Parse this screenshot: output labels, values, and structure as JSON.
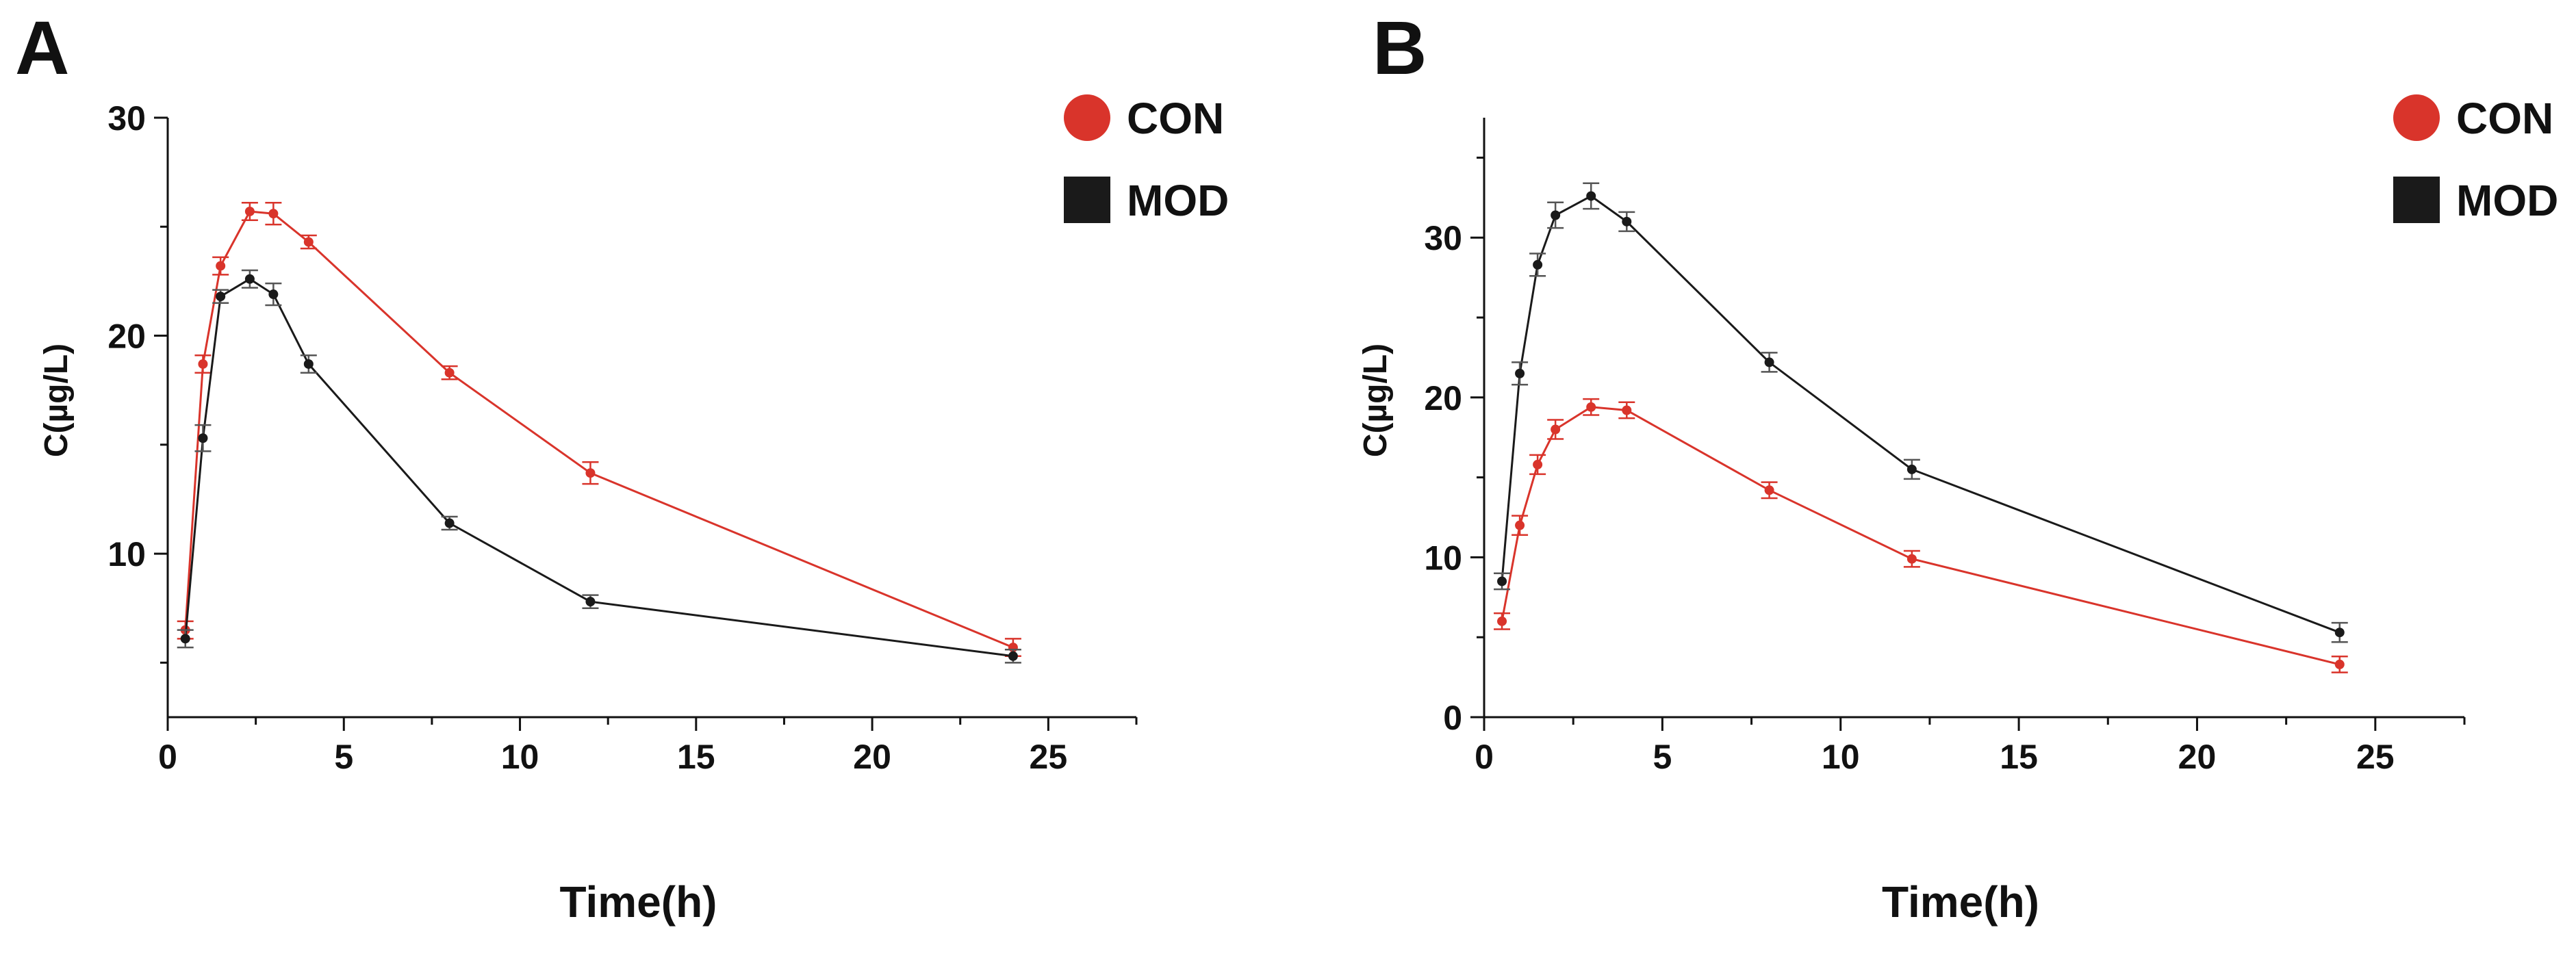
{
  "chart_data": [
    {
      "panel": "A",
      "type": "line",
      "title": "",
      "xlabel": "Time(h)",
      "ylabel": "C(µg/L)",
      "xlim": [
        0,
        27.5
      ],
      "ylim": [
        2.5,
        30
      ],
      "xticks": [
        0,
        5,
        10,
        15,
        20,
        25
      ],
      "yticks": [
        10,
        20,
        30
      ],
      "grid": false,
      "legend_position": "top-right",
      "x": [
        0.5,
        1,
        1.5,
        2.33,
        3,
        4,
        8,
        12,
        24
      ],
      "series": [
        {
          "name": "CON",
          "color": "#d9342b",
          "marker": "circle",
          "values": [
            6.5,
            18.7,
            23.2,
            25.7,
            25.6,
            24.3,
            18.3,
            13.7,
            5.7
          ],
          "errors": [
            0.4,
            0.4,
            0.4,
            0.4,
            0.5,
            0.3,
            0.3,
            0.5,
            0.4
          ]
        },
        {
          "name": "MOD",
          "color": "#1a1a1a",
          "marker": "square",
          "values": [
            6.1,
            15.3,
            21.8,
            22.6,
            21.9,
            18.7,
            11.4,
            7.8,
            5.3
          ],
          "errors": [
            0.4,
            0.6,
            0.3,
            0.4,
            0.5,
            0.4,
            0.3,
            0.3,
            0.3
          ]
        }
      ]
    },
    {
      "panel": "B",
      "type": "line",
      "title": "",
      "xlabel": "Time(h)",
      "ylabel": "C(µg/L)",
      "xlim": [
        0,
        27.5
      ],
      "ylim": [
        0,
        37.5
      ],
      "xticks": [
        0,
        5,
        10,
        15,
        20,
        25
      ],
      "yticks": [
        0,
        10,
        20,
        30
      ],
      "grid": false,
      "legend_position": "top-right",
      "x": [
        0.5,
        1,
        1.5,
        2,
        3,
        4,
        8,
        12,
        24
      ],
      "series": [
        {
          "name": "CON",
          "color": "#d9342b",
          "marker": "circle",
          "values": [
            6.0,
            12.0,
            15.8,
            18.0,
            19.4,
            19.2,
            14.2,
            9.9,
            3.3
          ],
          "errors": [
            0.5,
            0.6,
            0.6,
            0.6,
            0.5,
            0.5,
            0.5,
            0.5,
            0.5
          ]
        },
        {
          "name": "MOD",
          "color": "#1a1a1a",
          "marker": "square",
          "values": [
            8.5,
            21.5,
            28.3,
            31.4,
            32.6,
            31.0,
            22.2,
            15.5,
            5.3
          ],
          "errors": [
            0.5,
            0.7,
            0.7,
            0.8,
            0.8,
            0.6,
            0.6,
            0.6,
            0.6
          ]
        }
      ]
    }
  ]
}
